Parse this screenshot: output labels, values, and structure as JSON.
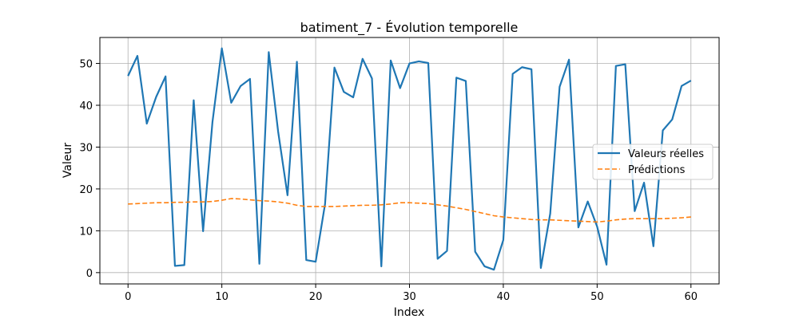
{
  "chart_data": {
    "type": "line",
    "title": "batiment_7 - Évolution temporelle",
    "xlabel": "Index",
    "ylabel": "Valeur",
    "xlim": [
      -3,
      63
    ],
    "ylim": [
      -2.7,
      56.2
    ],
    "xticks": [
      0,
      10,
      20,
      30,
      40,
      50,
      60
    ],
    "yticks": [
      0,
      10,
      20,
      30,
      40,
      50
    ],
    "grid": true,
    "legend_position": "center-right",
    "x": [
      0,
      1,
      2,
      3,
      4,
      5,
      6,
      7,
      8,
      9,
      10,
      11,
      12,
      13,
      14,
      15,
      16,
      17,
      18,
      19,
      20,
      21,
      22,
      23,
      24,
      25,
      26,
      27,
      28,
      29,
      30,
      31,
      32,
      33,
      34,
      35,
      36,
      37,
      38,
      39,
      40,
      41,
      42,
      43,
      44,
      45,
      46,
      47,
      48,
      49,
      50,
      51,
      52,
      53,
      54,
      55,
      56,
      57,
      58,
      59,
      60
    ],
    "series": [
      {
        "name": "Valeurs réelles",
        "color": "#1f77b4",
        "style": "solid",
        "values": [
          47.0,
          51.8,
          35.6,
          42.0,
          46.9,
          1.6,
          1.8,
          41.2,
          9.9,
          36.0,
          53.6,
          40.6,
          44.6,
          46.3,
          2.1,
          52.7,
          33.7,
          18.5,
          50.4,
          3.0,
          2.6,
          16.4,
          49.0,
          43.2,
          41.9,
          51.1,
          46.4,
          1.5,
          50.7,
          44.1,
          50.0,
          50.5,
          50.1,
          3.3,
          5.2,
          46.6,
          45.8,
          5.0,
          1.5,
          0.7,
          7.8,
          47.5,
          49.1,
          48.6,
          1.1,
          14.1,
          44.4,
          50.9,
          10.8,
          17.0,
          11.0,
          1.9,
          49.4,
          49.8,
          14.7,
          21.5,
          6.3,
          34.0,
          36.6,
          44.6,
          45.9
        ]
      },
      {
        "name": "Prédictions",
        "color": "#ff7f0e",
        "style": "dashed",
        "values": [
          16.4,
          16.5,
          16.6,
          16.7,
          16.7,
          16.8,
          16.8,
          16.9,
          16.9,
          17.0,
          17.3,
          17.7,
          17.6,
          17.4,
          17.2,
          17.1,
          16.9,
          16.6,
          16.1,
          15.8,
          15.8,
          15.8,
          15.8,
          15.9,
          16.0,
          16.1,
          16.1,
          16.2,
          16.4,
          16.7,
          16.7,
          16.6,
          16.5,
          16.2,
          15.9,
          15.5,
          15.1,
          14.6,
          14.1,
          13.6,
          13.3,
          13.1,
          12.9,
          12.7,
          12.6,
          12.6,
          12.5,
          12.4,
          12.3,
          12.2,
          12.1,
          12.3,
          12.6,
          12.8,
          12.9,
          12.9,
          12.9,
          12.9,
          13.0,
          13.1,
          13.3
        ]
      }
    ]
  }
}
